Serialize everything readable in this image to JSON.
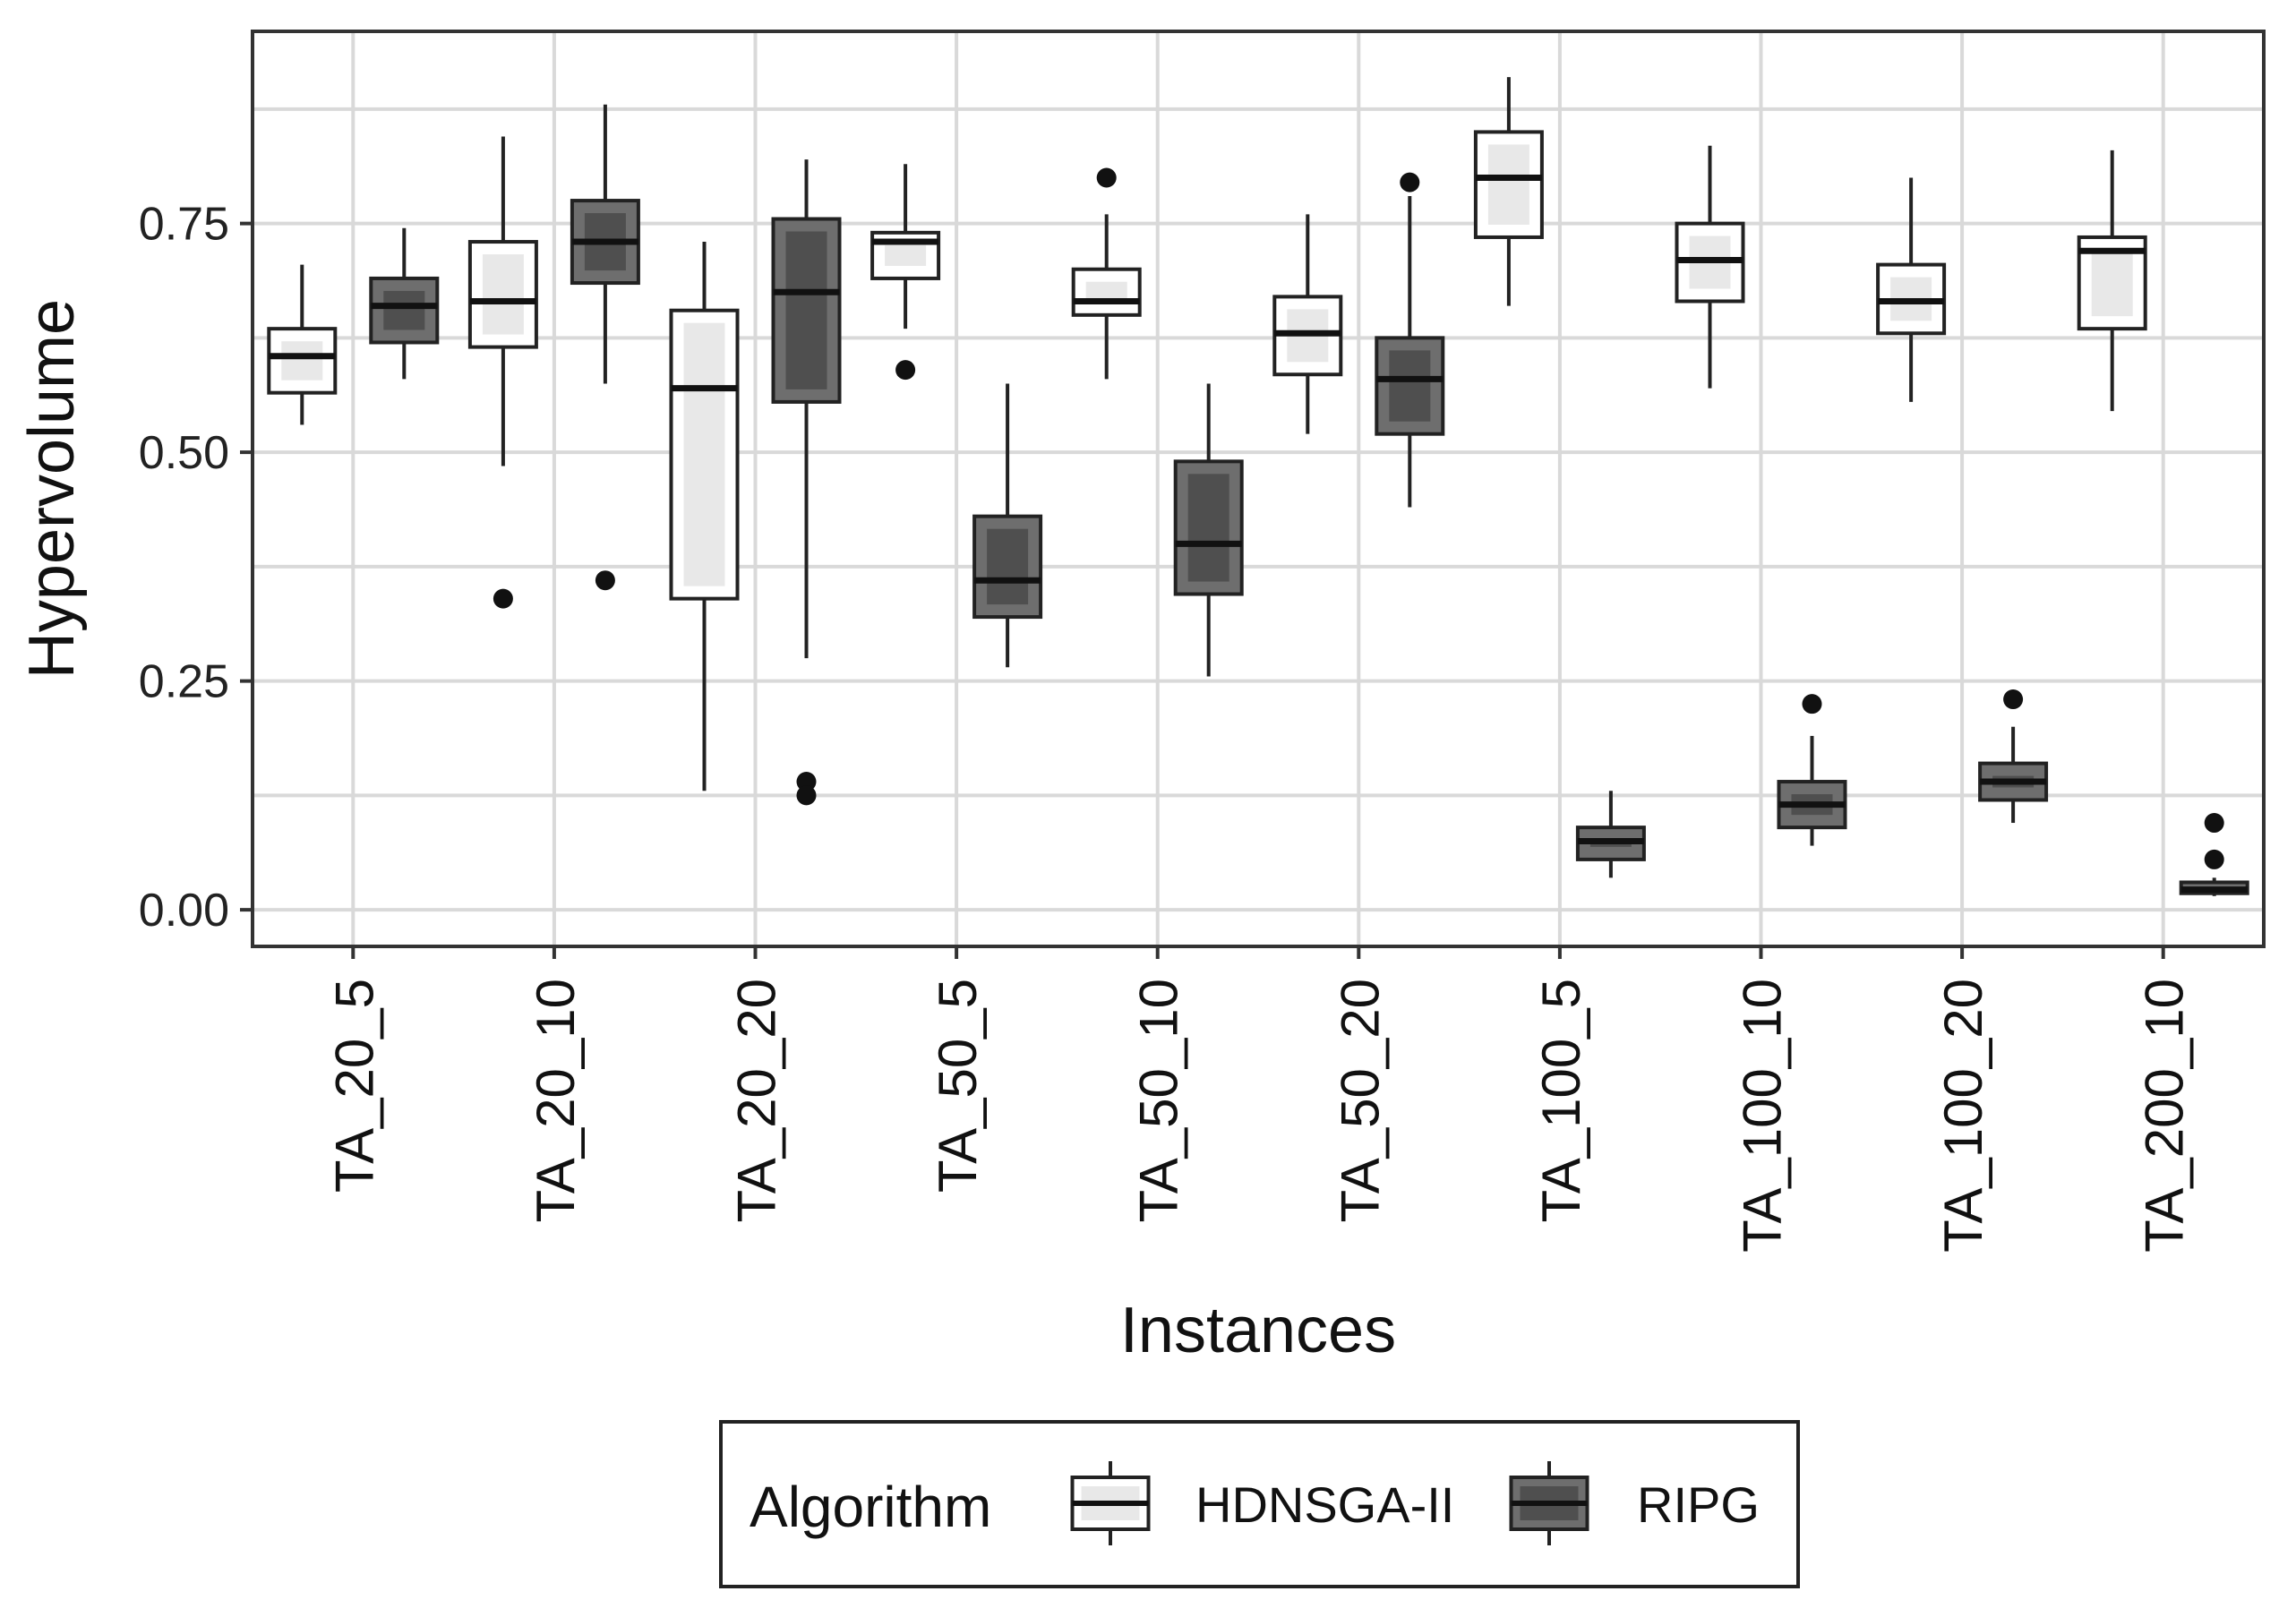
{
  "chart_data": {
    "type": "boxplot",
    "xlabel": "Instances",
    "ylabel": "Hypervolume",
    "ylim": [
      -0.04,
      0.96
    ],
    "y_ticks": [
      0.0,
      0.25,
      0.5,
      0.75
    ],
    "y_tick_labels": [
      "0.00",
      "0.25",
      "0.50",
      "0.75"
    ],
    "grid": true,
    "legend_position": "bottom",
    "categories": [
      "TA_20_5",
      "TA_20_10",
      "TA_20_20",
      "TA_50_5",
      "TA_50_10",
      "TA_50_20",
      "TA_100_5",
      "TA_100_10",
      "TA_100_20",
      "TA_200_10"
    ],
    "legend": {
      "title": "Algorithm",
      "entries": [
        {
          "name": "HDNSGA-II",
          "color": "#ffffff"
        },
        {
          "name": "RIPG",
          "color": "#6e6e6e"
        }
      ]
    },
    "series": [
      {
        "name": "HDNSGA-II",
        "fill": "#ffffff",
        "inner_fill": "#e8e8e8",
        "boxes": [
          {
            "category": "TA_20_5",
            "whisker_low": 0.53,
            "q1": 0.565,
            "median": 0.605,
            "q3": 0.635,
            "whisker_high": 0.705,
            "outliers": []
          },
          {
            "category": "TA_20_10",
            "whisker_low": 0.485,
            "q1": 0.615,
            "median": 0.665,
            "q3": 0.73,
            "whisker_high": 0.845,
            "outliers": [
              0.34
            ]
          },
          {
            "category": "TA_20_20",
            "whisker_low": 0.13,
            "q1": 0.34,
            "median": 0.57,
            "q3": 0.655,
            "whisker_high": 0.73,
            "outliers": []
          },
          {
            "category": "TA_50_5",
            "whisker_low": 0.635,
            "q1": 0.69,
            "median": 0.73,
            "q3": 0.74,
            "whisker_high": 0.815,
            "outliers": [
              0.59
            ]
          },
          {
            "category": "TA_50_10",
            "whisker_low": 0.58,
            "q1": 0.65,
            "median": 0.665,
            "q3": 0.7,
            "whisker_high": 0.76,
            "outliers": [
              0.8
            ]
          },
          {
            "category": "TA_50_20",
            "whisker_low": 0.52,
            "q1": 0.585,
            "median": 0.63,
            "q3": 0.67,
            "whisker_high": 0.76,
            "outliers": []
          },
          {
            "category": "TA_100_5",
            "whisker_low": 0.66,
            "q1": 0.735,
            "median": 0.8,
            "q3": 0.85,
            "whisker_high": 0.91,
            "outliers": []
          },
          {
            "category": "TA_100_10",
            "whisker_low": 0.57,
            "q1": 0.665,
            "median": 0.71,
            "q3": 0.75,
            "whisker_high": 0.835,
            "outliers": []
          },
          {
            "category": "TA_100_20",
            "whisker_low": 0.555,
            "q1": 0.63,
            "median": 0.665,
            "q3": 0.705,
            "whisker_high": 0.8,
            "outliers": []
          },
          {
            "category": "TA_200_10",
            "whisker_low": 0.545,
            "q1": 0.635,
            "median": 0.72,
            "q3": 0.735,
            "whisker_high": 0.83,
            "outliers": []
          }
        ]
      },
      {
        "name": "RIPG",
        "fill": "#6e6e6e",
        "inner_fill": "#4f4f4f",
        "boxes": [
          {
            "category": "TA_20_5",
            "whisker_low": 0.58,
            "q1": 0.62,
            "median": 0.66,
            "q3": 0.69,
            "whisker_high": 0.745,
            "outliers": []
          },
          {
            "category": "TA_20_10",
            "whisker_low": 0.575,
            "q1": 0.685,
            "median": 0.73,
            "q3": 0.775,
            "whisker_high": 0.88,
            "outliers": [
              0.36
            ]
          },
          {
            "category": "TA_20_20",
            "whisker_low": 0.275,
            "q1": 0.555,
            "median": 0.675,
            "q3": 0.755,
            "whisker_high": 0.82,
            "outliers": [
              0.14,
              0.125
            ]
          },
          {
            "category": "TA_50_5",
            "whisker_low": 0.265,
            "q1": 0.32,
            "median": 0.36,
            "q3": 0.43,
            "whisker_high": 0.575,
            "outliers": []
          },
          {
            "category": "TA_50_10",
            "whisker_low": 0.255,
            "q1": 0.345,
            "median": 0.4,
            "q3": 0.49,
            "whisker_high": 0.575,
            "outliers": []
          },
          {
            "category": "TA_50_20",
            "whisker_low": 0.44,
            "q1": 0.52,
            "median": 0.58,
            "q3": 0.625,
            "whisker_high": 0.78,
            "outliers": [
              0.795
            ]
          },
          {
            "category": "TA_100_5",
            "whisker_low": 0.035,
            "q1": 0.055,
            "median": 0.075,
            "q3": 0.09,
            "whisker_high": 0.13,
            "outliers": []
          },
          {
            "category": "TA_100_10",
            "whisker_low": 0.07,
            "q1": 0.09,
            "median": 0.115,
            "q3": 0.14,
            "whisker_high": 0.19,
            "outliers": [
              0.225
            ]
          },
          {
            "category": "TA_100_20",
            "whisker_low": 0.095,
            "q1": 0.12,
            "median": 0.14,
            "q3": 0.16,
            "whisker_high": 0.2,
            "outliers": [
              0.23
            ]
          },
          {
            "category": "TA_200_10",
            "whisker_low": 0.015,
            "q1": 0.018,
            "median": 0.022,
            "q3": 0.03,
            "whisker_high": 0.035,
            "outliers": [
              0.095,
              0.055
            ]
          }
        ]
      }
    ]
  }
}
